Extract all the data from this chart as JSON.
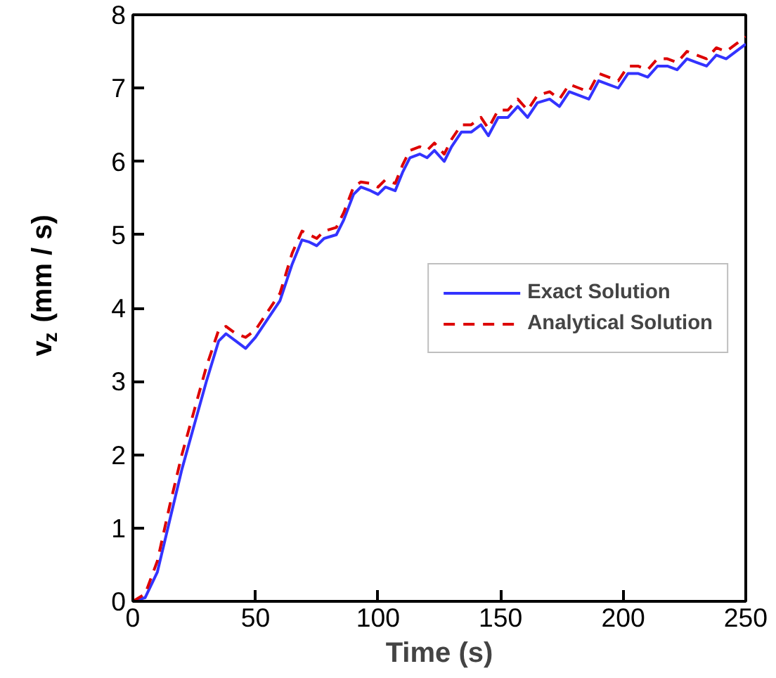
{
  "chart_data": {
    "type": "line",
    "xlabel": "Time (s)",
    "ylabel": "v$_{z}$ (mm / s)",
    "xlim": [
      0,
      250
    ],
    "ylim": [
      0,
      8
    ],
    "xticks": [
      0,
      50,
      100,
      150,
      200,
      250
    ],
    "yticks": [
      0,
      1,
      2,
      3,
      4,
      5,
      6,
      7,
      8
    ],
    "grid": false,
    "legend": "right",
    "marker": "none",
    "series": [
      {
        "name": "Exact Solution",
        "color": "#3333ff",
        "line_style": "solid",
        "x": [
          0,
          5,
          10,
          15,
          20,
          25,
          30,
          35,
          38,
          42,
          46,
          50,
          55,
          60,
          65,
          69,
          72,
          75,
          78,
          83,
          86,
          90,
          93,
          97,
          100,
          103,
          107,
          110,
          113,
          117,
          120,
          123,
          127,
          130,
          134,
          138,
          142,
          145,
          149,
          153,
          157,
          161,
          165,
          170,
          174,
          178,
          182,
          186,
          190,
          194,
          198,
          202,
          206,
          210,
          214,
          218,
          222,
          226,
          230,
          234,
          238,
          242,
          246,
          250
        ],
        "values": [
          0,
          0.05,
          0.4,
          1.1,
          1.8,
          2.4,
          3.0,
          3.55,
          3.65,
          3.55,
          3.45,
          3.6,
          3.85,
          4.1,
          4.6,
          4.93,
          4.9,
          4.85,
          4.95,
          5.0,
          5.2,
          5.55,
          5.65,
          5.6,
          5.55,
          5.65,
          5.6,
          5.85,
          6.05,
          6.1,
          6.05,
          6.15,
          6.0,
          6.2,
          6.4,
          6.4,
          6.5,
          6.35,
          6.6,
          6.6,
          6.75,
          6.6,
          6.8,
          6.85,
          6.75,
          6.95,
          6.9,
          6.85,
          7.1,
          7.05,
          7.0,
          7.2,
          7.2,
          7.15,
          7.3,
          7.3,
          7.25,
          7.4,
          7.35,
          7.3,
          7.45,
          7.4,
          7.5,
          7.6
        ]
      },
      {
        "name": "Analytical Solution",
        "color": "#dd0000",
        "line_style": "dashed",
        "x": [
          0,
          5,
          10,
          15,
          20,
          25,
          30,
          35,
          38,
          42,
          46,
          50,
          55,
          60,
          65,
          69,
          72,
          75,
          78,
          83,
          86,
          90,
          93,
          97,
          100,
          103,
          107,
          110,
          113,
          117,
          120,
          123,
          127,
          130,
          134,
          138,
          142,
          145,
          149,
          153,
          157,
          161,
          165,
          170,
          174,
          178,
          182,
          186,
          190,
          194,
          198,
          202,
          206,
          210,
          214,
          218,
          222,
          226,
          230,
          234,
          238,
          242,
          246,
          250
        ],
        "values": [
          0,
          0.1,
          0.55,
          1.3,
          2.0,
          2.6,
          3.2,
          3.7,
          3.75,
          3.65,
          3.6,
          3.7,
          3.95,
          4.2,
          4.75,
          5.05,
          5.0,
          4.95,
          5.05,
          5.1,
          5.3,
          5.65,
          5.72,
          5.7,
          5.65,
          5.75,
          5.7,
          5.95,
          6.15,
          6.2,
          6.15,
          6.25,
          6.1,
          6.3,
          6.5,
          6.5,
          6.6,
          6.45,
          6.7,
          6.7,
          6.85,
          6.7,
          6.9,
          6.95,
          6.85,
          7.05,
          7.0,
          6.95,
          7.2,
          7.15,
          7.1,
          7.3,
          7.3,
          7.25,
          7.4,
          7.4,
          7.35,
          7.5,
          7.45,
          7.4,
          7.55,
          7.5,
          7.6,
          7.7
        ]
      }
    ]
  }
}
